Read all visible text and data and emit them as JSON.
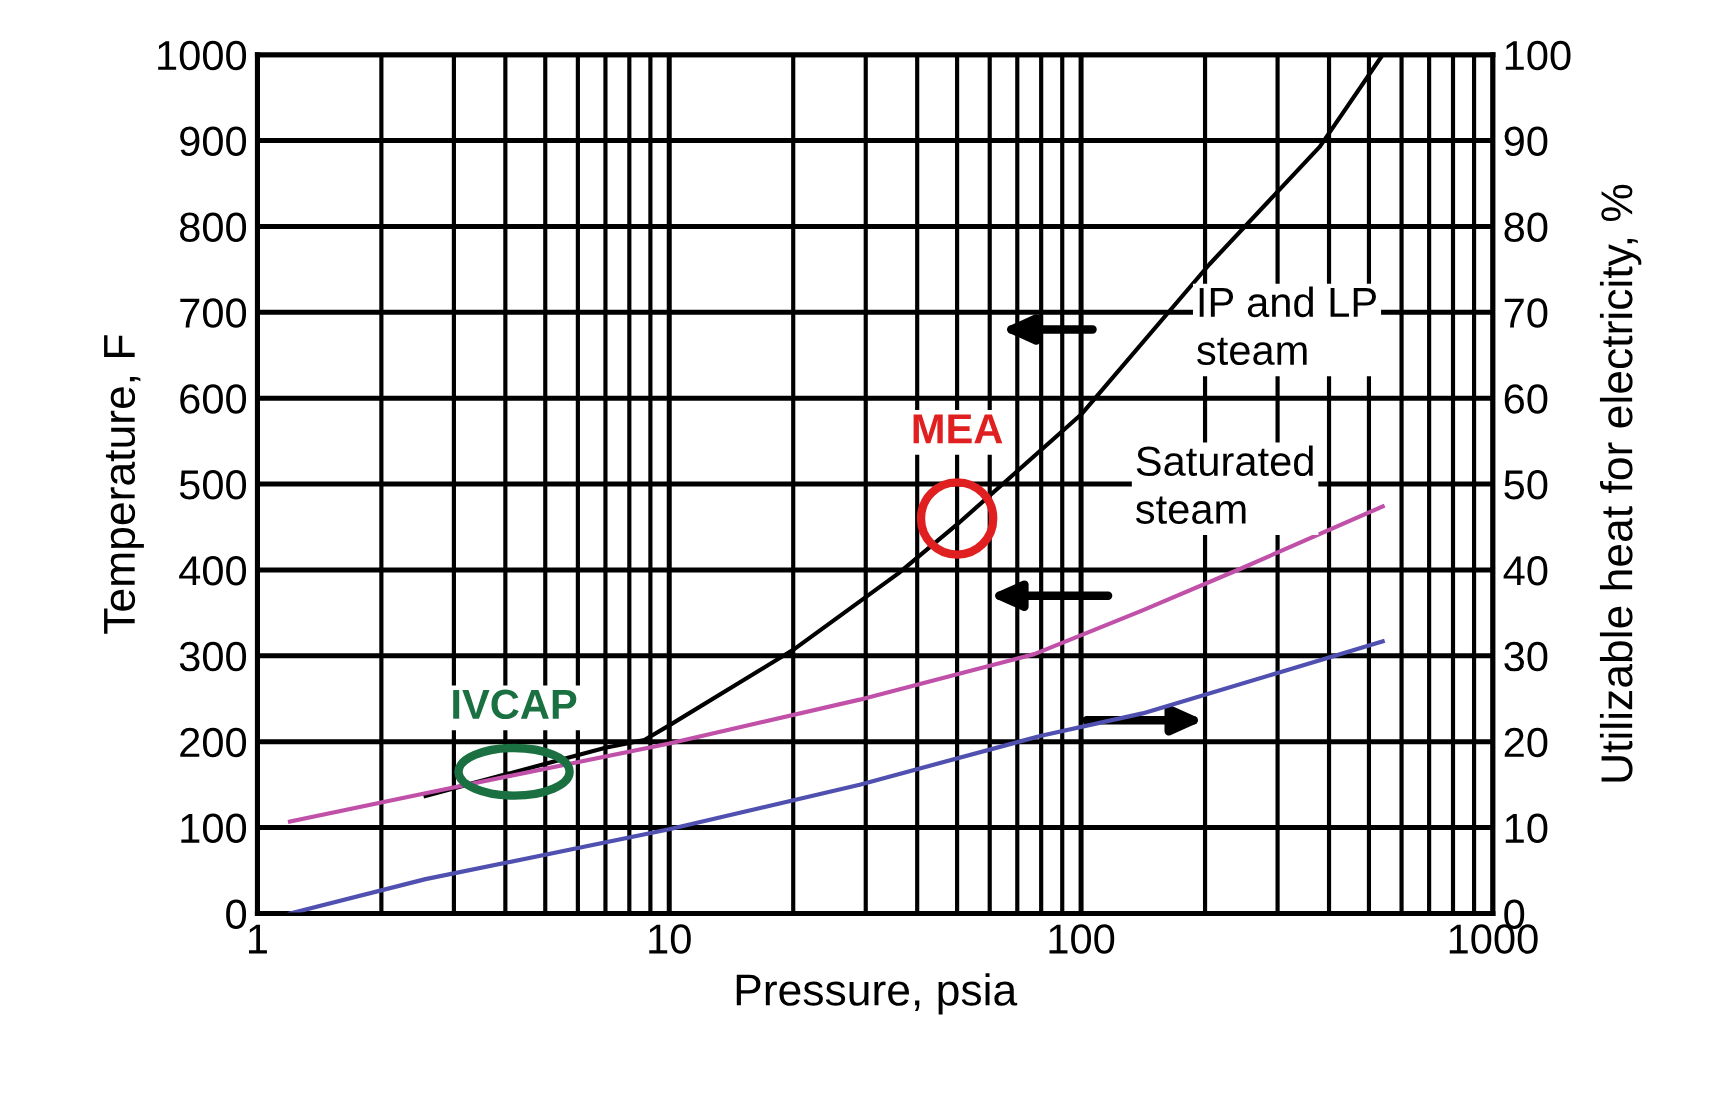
{
  "chart_data": {
    "type": "line",
    "xlabel": "Pressure, psia",
    "ylabel": "Temperature, F",
    "y2label": "Utilizable heat for electricity, %",
    "log": "x",
    "xlim": [
      1,
      1000
    ],
    "xticks": [
      1,
      10,
      100,
      1000
    ],
    "ylim": [
      0,
      1000
    ],
    "yticks": [
      0,
      100,
      200,
      300,
      400,
      500,
      600,
      700,
      800,
      900,
      1000
    ],
    "y2lim": [
      0,
      100
    ],
    "y2ticks": [
      0,
      10,
      20,
      30,
      40,
      50,
      60,
      70,
      80,
      90,
      100
    ],
    "grid": true,
    "marker": "none",
    "line_style": "solid",
    "series": [
      {
        "name": "IP and LP steam",
        "color": "#000000",
        "x": [
          2.56,
          7,
          8.7,
          10,
          20,
          36,
          50,
          100,
          205,
          380,
          540
        ],
        "values": [
          137,
          193,
          202,
          219,
          307,
          396,
          453,
          581,
          756,
          893,
          1000
        ]
      },
      {
        "name": "Saturated steam",
        "color": "#c050a8",
        "x": [
          1.2,
          2.56,
          10,
          29,
          77,
          141,
          240,
          540
        ],
        "values": [
          107,
          140,
          198,
          249,
          302,
          353,
          400,
          474
        ]
      },
      {
        "color": "#5050b0",
        "axis": "y2",
        "x": [
          1.2,
          2.56,
          10,
          29,
          80,
          141,
          300,
          540
        ],
        "values": [
          0,
          4,
          9.8,
          15,
          20.7,
          23.3,
          28,
          31.7
        ]
      }
    ],
    "annotations": [
      {
        "text": "MEA",
        "x": 50,
        "y": 460
      },
      {
        "text": "IVCAP",
        "x": 4.2,
        "y": 165
      }
    ]
  }
}
